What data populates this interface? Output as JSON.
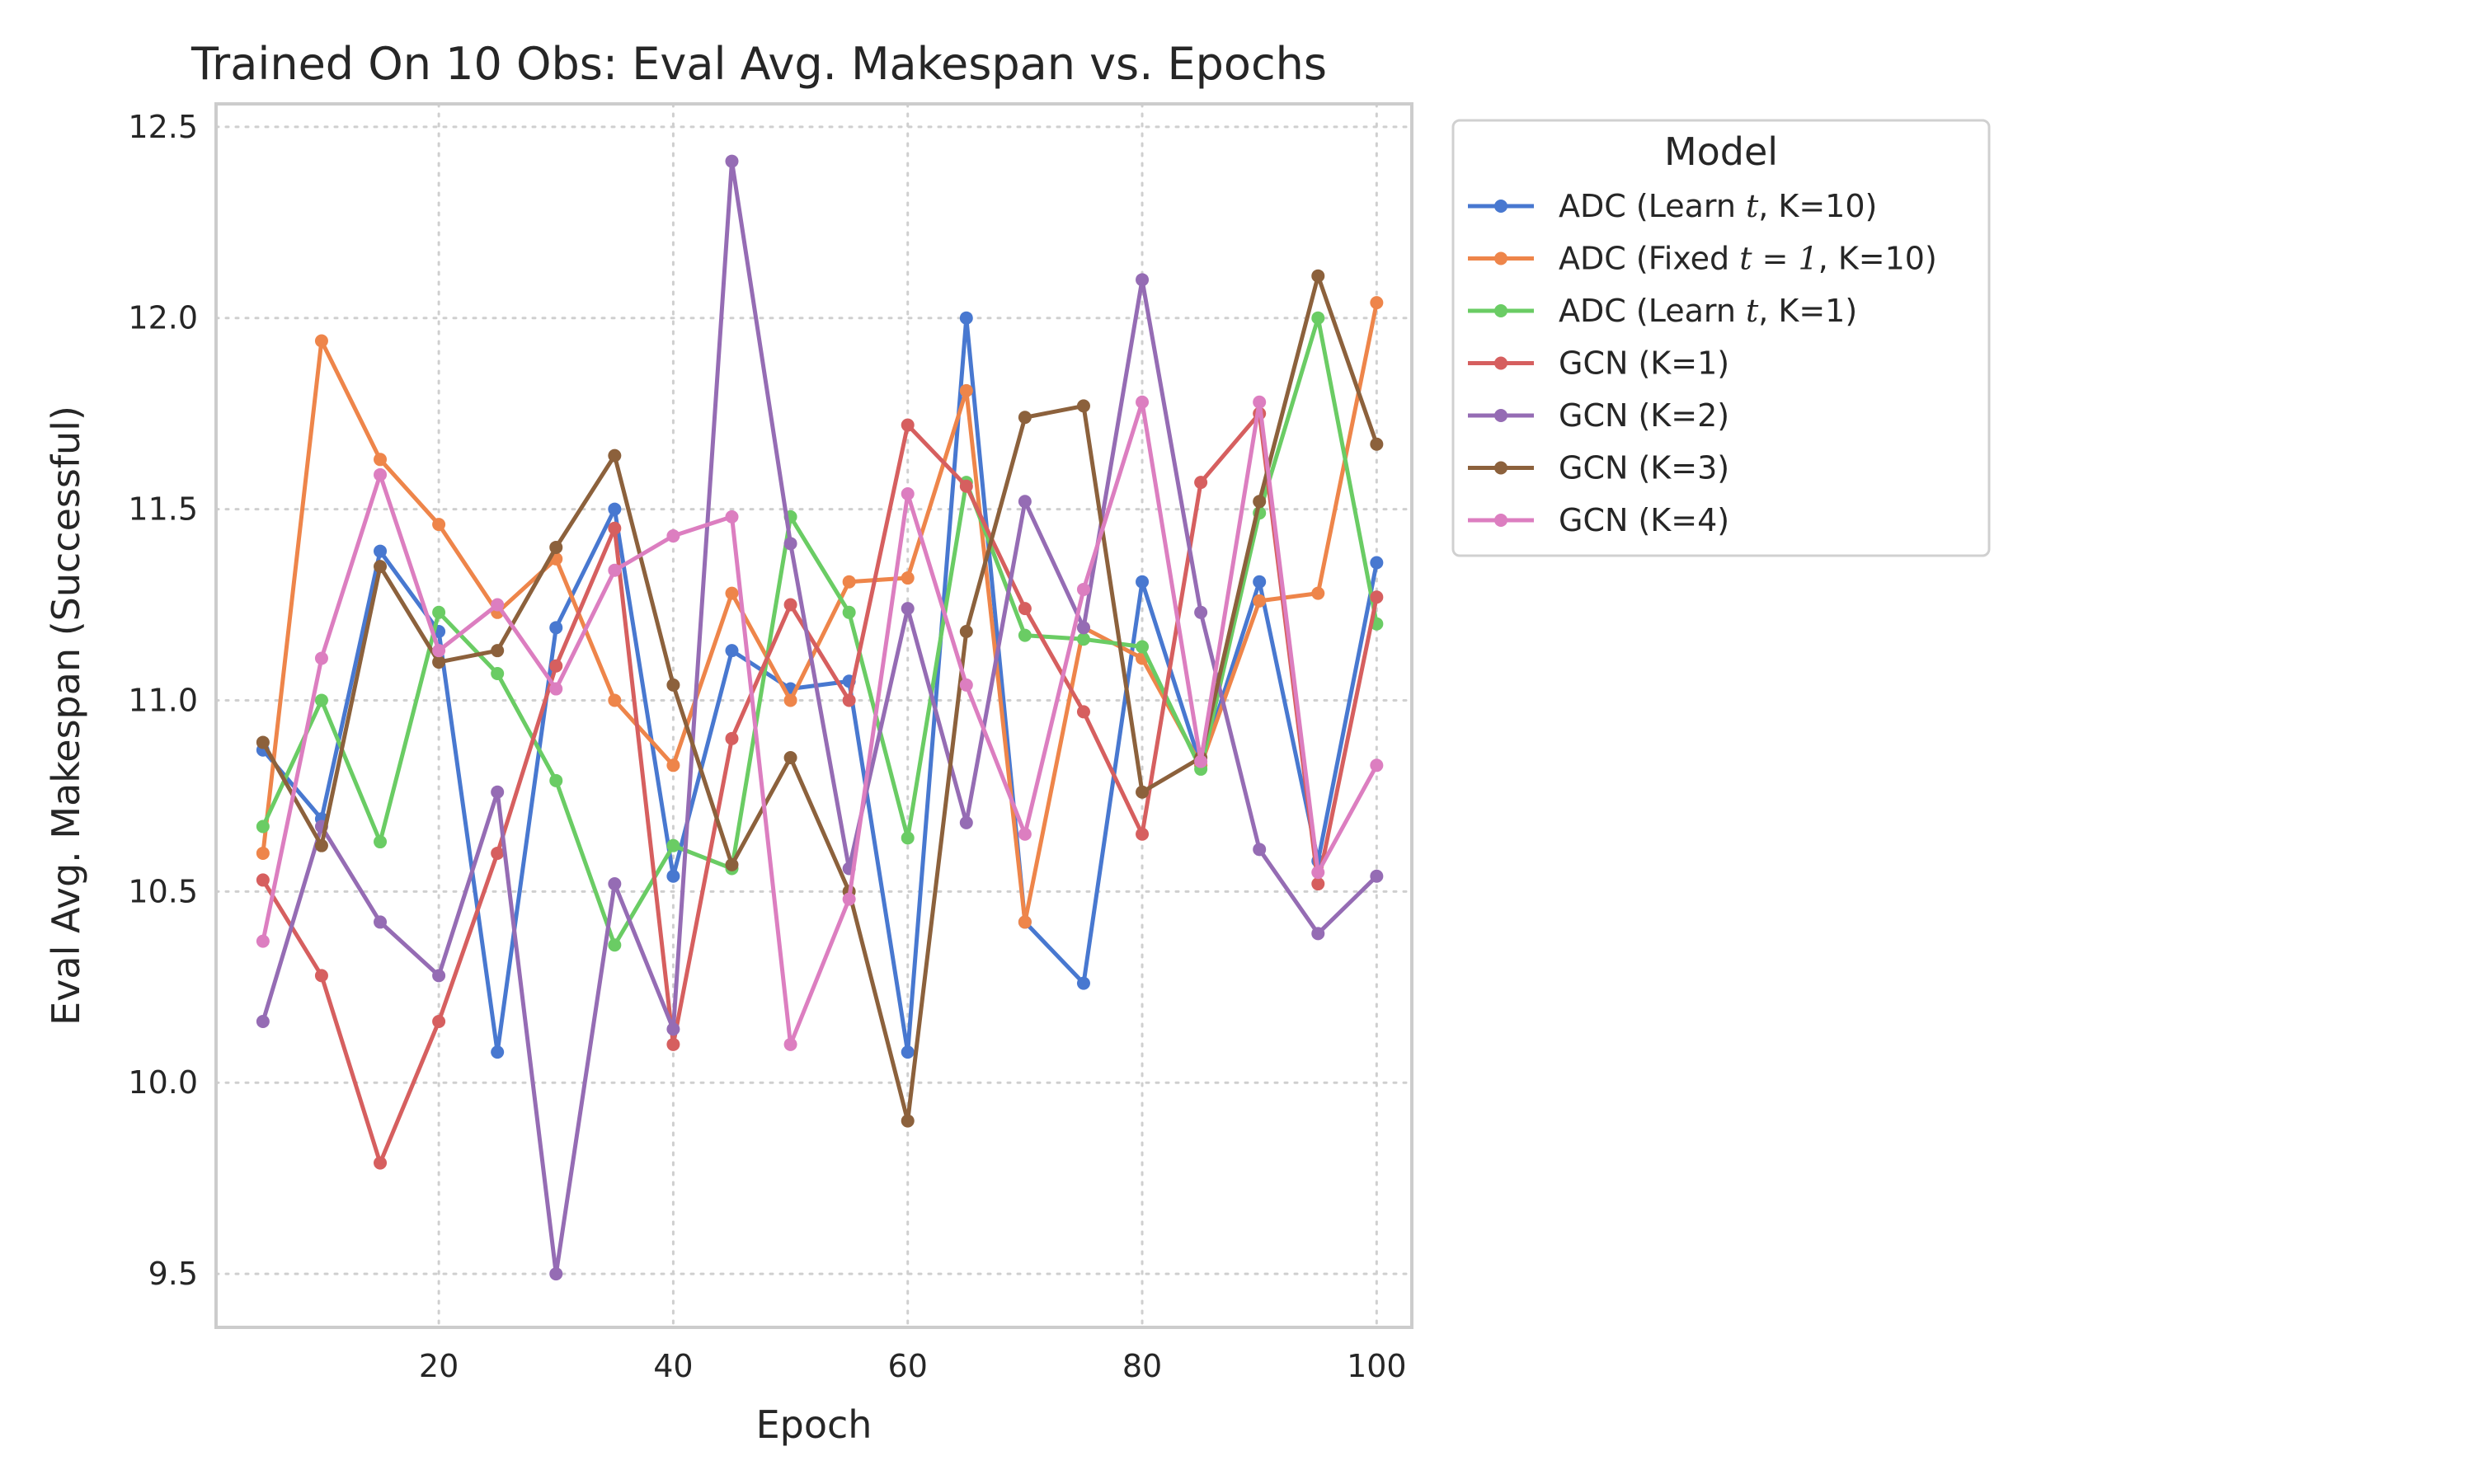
{
  "chart_data": {
    "type": "line",
    "title": "Trained On 10 Obs: Eval Avg. Makespan vs. Epochs",
    "xlabel": "Epoch",
    "ylabel": "Eval Avg. Makespan (Successful)",
    "xlim": [
      1,
      103
    ],
    "ylim": [
      9.36,
      12.56
    ],
    "xticks": [
      20,
      40,
      60,
      80,
      100
    ],
    "yticks": [
      9.5,
      10.0,
      10.5,
      11.0,
      11.5,
      12.0,
      12.5
    ],
    "xtick_labels": [
      "20",
      "40",
      "60",
      "80",
      "100"
    ],
    "ytick_labels": [
      "9.5",
      "10.0",
      "10.5",
      "11.0",
      "11.5",
      "12.0",
      "12.5"
    ],
    "grid": true,
    "legend": {
      "title": "Model",
      "placement": "outside upper right",
      "items": [
        {
          "pre": "ADC (Learn ",
          "math": "t",
          "post": ", K=10)"
        },
        {
          "pre": "ADC (Fixed ",
          "math": "t = 1",
          "post": ", K=10)"
        },
        {
          "pre": "ADC (Learn ",
          "math": "t",
          "post": ", K=1)"
        },
        {
          "pre": "GCN (K=1)",
          "math": "",
          "post": ""
        },
        {
          "pre": "GCN (K=2)",
          "math": "",
          "post": ""
        },
        {
          "pre": "GCN (K=3)",
          "math": "",
          "post": ""
        },
        {
          "pre": "GCN (K=4)",
          "math": "",
          "post": ""
        }
      ]
    },
    "x": [
      5,
      10,
      15,
      20,
      25,
      30,
      35,
      40,
      45,
      50,
      55,
      60,
      65,
      70,
      75,
      80,
      85,
      90,
      95,
      100
    ],
    "series": [
      {
        "color": "#4878d0",
        "values": [
          10.87,
          10.69,
          11.39,
          11.18,
          10.08,
          11.19,
          11.5,
          10.54,
          11.13,
          11.03,
          11.05,
          10.08,
          12.0,
          10.42,
          10.26,
          11.31,
          10.83,
          11.31,
          10.58,
          11.36
        ]
      },
      {
        "color": "#ee854a",
        "values": [
          10.6,
          11.94,
          11.63,
          11.46,
          11.23,
          11.37,
          11.0,
          10.83,
          11.28,
          11.0,
          11.31,
          11.32,
          11.81,
          10.42,
          11.19,
          11.11,
          10.83,
          11.26,
          11.28,
          12.04
        ]
      },
      {
        "color": "#6acc64",
        "values": [
          10.67,
          11.0,
          10.63,
          11.23,
          11.07,
          10.79,
          10.36,
          10.62,
          10.56,
          11.48,
          11.23,
          10.64,
          11.57,
          11.17,
          11.16,
          11.14,
          10.82,
          11.49,
          12.0,
          11.2
        ]
      },
      {
        "color": "#d65f5f",
        "values": [
          10.53,
          10.28,
          9.79,
          10.16,
          10.6,
          11.09,
          11.45,
          10.1,
          10.9,
          11.25,
          11.0,
          11.72,
          11.56,
          11.24,
          10.97,
          10.65,
          11.57,
          11.75,
          10.52,
          11.27
        ]
      },
      {
        "color": "#956cb4",
        "values": [
          10.16,
          10.67,
          10.42,
          10.28,
          10.76,
          9.5,
          10.52,
          10.14,
          12.41,
          11.41,
          10.56,
          11.24,
          10.68,
          11.52,
          11.19,
          12.1,
          11.23,
          10.61,
          10.39,
          10.54
        ]
      },
      {
        "color": "#8c613c",
        "values": [
          10.89,
          10.62,
          11.35,
          11.1,
          11.13,
          11.4,
          11.64,
          11.04,
          10.57,
          10.85,
          10.5,
          9.9,
          11.18,
          11.74,
          11.77,
          10.76,
          10.85,
          11.52,
          12.11,
          11.67
        ]
      },
      {
        "color": "#dc7ec0",
        "values": [
          10.37,
          11.11,
          11.59,
          11.13,
          11.25,
          11.03,
          11.34,
          11.43,
          11.48,
          10.1,
          10.48,
          11.54,
          11.04,
          10.65,
          11.29,
          11.78,
          10.84,
          11.78,
          10.55,
          10.83
        ]
      }
    ]
  }
}
